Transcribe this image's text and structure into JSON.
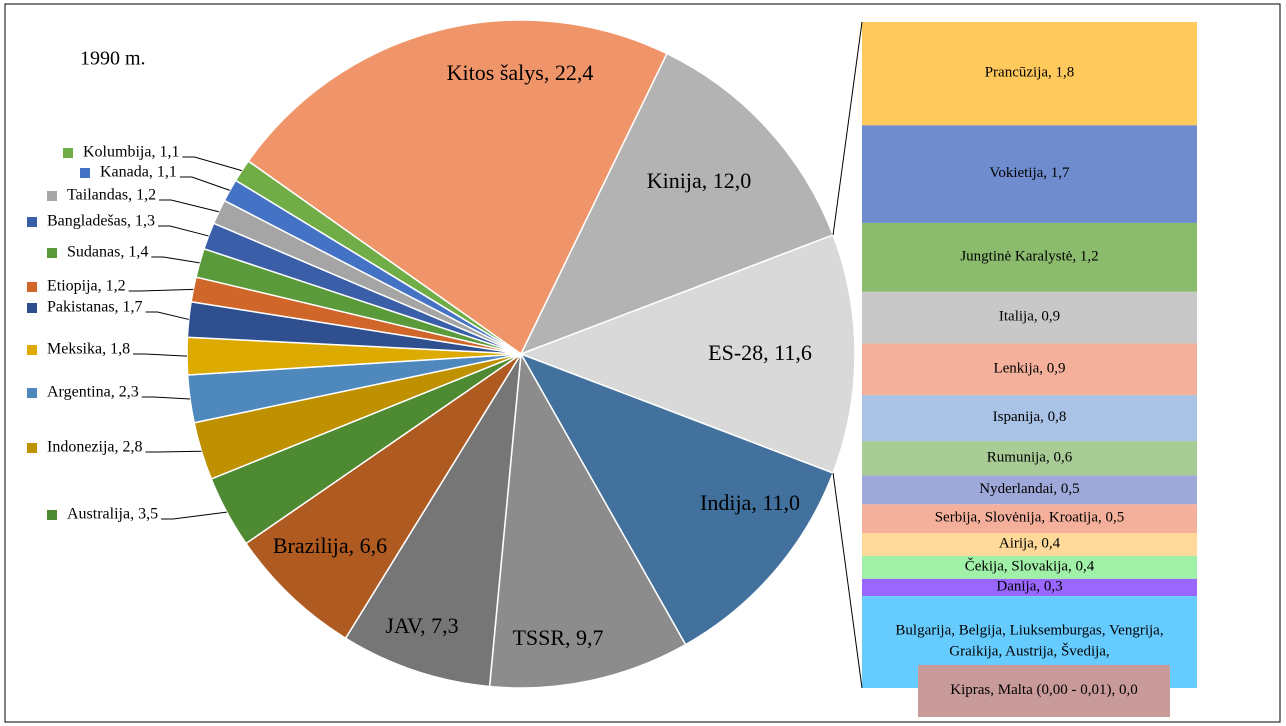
{
  "chart_data": {
    "type": "pie",
    "title": "1990 m.",
    "labels": [
      "Kitos šalys, 22,4",
      "Kinija, 12,0",
      "ES-28, 11,6",
      "Indija, 11,0",
      "TSSR, 9,7",
      "JAV, 7,3",
      "Brazilija, 6,6",
      "Australija, 3,5",
      "Indonezija, 2,8",
      "Argentina, 2,3",
      "Meksika, 1,8",
      "Pakistanas, 1,7",
      "Etiopija, 1,2",
      "Sudanas, 1,4",
      "Bangladešas, 1,3",
      "Tailandas, 1,2",
      "Kanada, 1,1",
      "Kolumbija, 1,1"
    ],
    "values": [
      22.4,
      12.0,
      11.6,
      11.0,
      9.7,
      7.3,
      6.6,
      3.5,
      2.8,
      2.3,
      1.8,
      1.7,
      1.2,
      1.4,
      1.3,
      1.2,
      1.1,
      1.1
    ],
    "colors": [
      "#f0956a",
      "#b3b3b3",
      "#d9d9d9",
      "#41719c",
      "#8c8c8c",
      "#767676",
      "#ae5a21",
      "#4e8a31",
      "#bf9000",
      "#4f88bd",
      "#dcaa00",
      "#2f4f8f",
      "#d0662a",
      "#5a9a3a",
      "#3a5fa8",
      "#a5a5a5",
      "#4472c4",
      "#70ad47"
    ],
    "bar_of_pie": {
      "labels": [
        "Prancūzija, 1,8",
        "Vokietija, 1,7",
        "Jungtinė Karalystė, 1,2",
        "Italija, 0,9",
        "Lenkija, 0,9",
        "Ispanija, 0,8",
        "Rumunija, 0,6",
        "Nyderlandai, 0,5",
        "Serbija, Slovėnija, Kroatija, 0,5",
        "Airija, 0,4",
        "Čekija, Slovakija, 0,4",
        "Danija, 0,3",
        "Bulgarija, Belgija, Liuksemburgas, Vengrija, Graikija, Austrija, Švedija,",
        "Kipras, Malta (0,00 - 0,01), 0,0"
      ],
      "values": [
        1.8,
        1.7,
        1.2,
        0.9,
        0.9,
        0.8,
        0.6,
        0.5,
        0.5,
        0.4,
        0.4,
        0.3,
        1.6,
        0.0
      ],
      "colors": [
        "#ffc95c",
        "#6f8ccf",
        "#8bbb6d",
        "#c8c8c8",
        "#f4b09a",
        "#a9c3e6",
        "#a9cc97",
        "#9fa9d9",
        "#f4b09a",
        "#ffd99a",
        "#a0f0a8",
        "#9966ff",
        "#66ccff",
        "#c99a9a"
      ]
    }
  }
}
